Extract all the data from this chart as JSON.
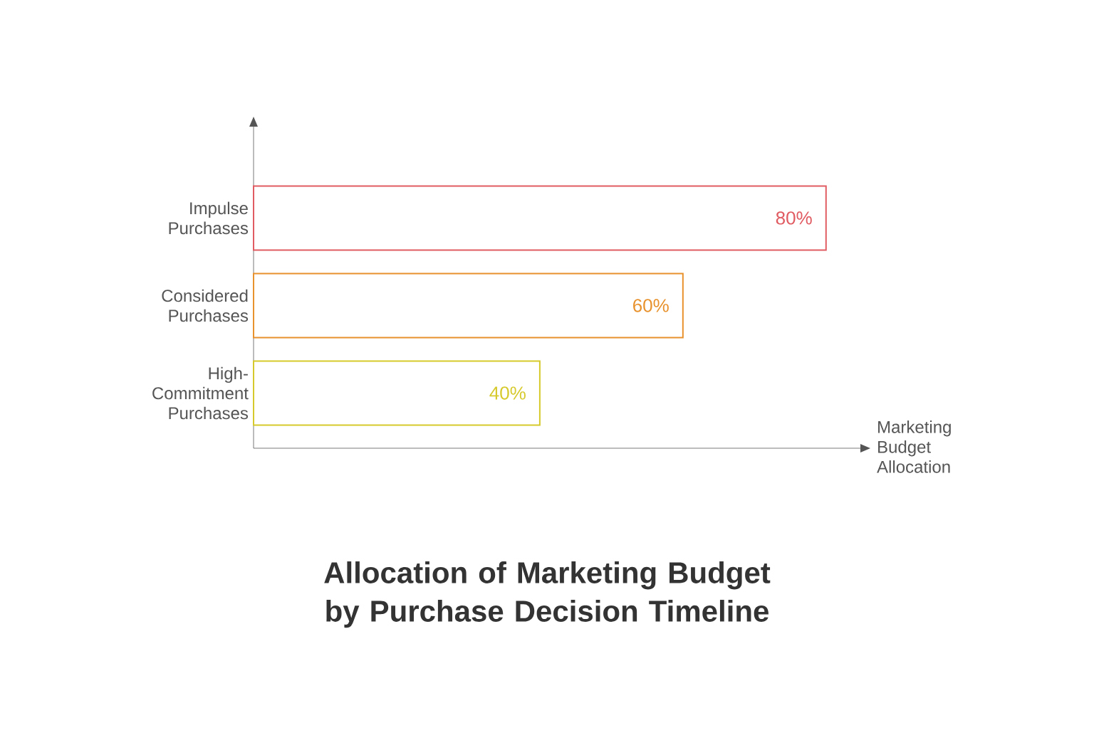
{
  "chart_data": {
    "type": "bar",
    "orientation": "horizontal",
    "title": "Allocation of Marketing Budget by Purchase Decision Timeline",
    "xlabel": "Marketing Budget Allocation",
    "categories": [
      "Impulse Purchases",
      "Considered Purchases",
      "High-Commitment Purchases"
    ],
    "values": [
      80,
      60,
      40
    ],
    "colors": [
      "#e05c62",
      "#e8922e",
      "#d6c92c"
    ],
    "value_labels": [
      "80%",
      "60%",
      "40%"
    ],
    "xlim": [
      0,
      85
    ],
    "tick_labels": "y"
  }
}
